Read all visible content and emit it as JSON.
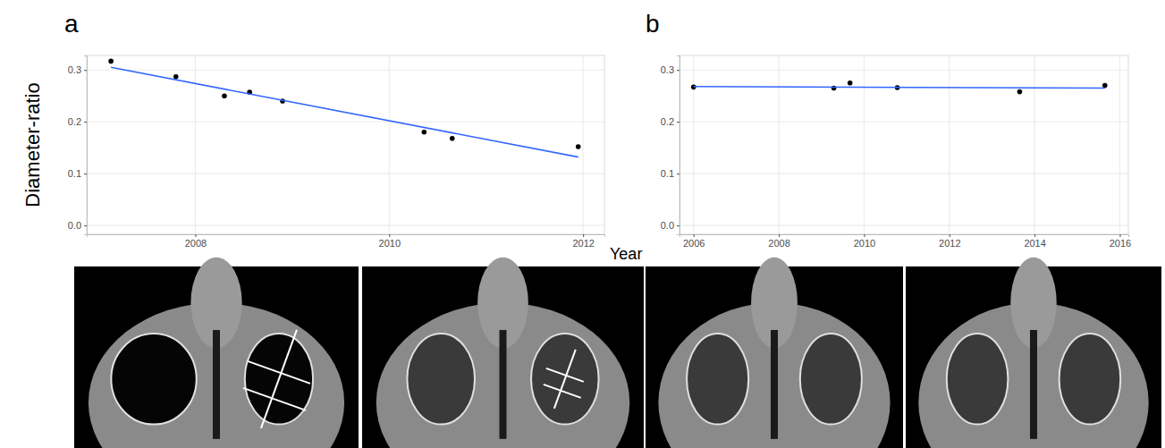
{
  "chart_data": [
    {
      "type": "scatter",
      "panel_label": "a",
      "y_label": "Diameter-ratio",
      "x_label": "Year",
      "xlim": [
        2006.88,
        2012.22
      ],
      "xticks": [
        2008,
        2010,
        2012
      ],
      "ylim": [
        -0.017,
        0.328
      ],
      "yticks": [
        {
          "value": 0,
          "label": "0.0"
        },
        0.1,
        0.2,
        0.3
      ],
      "grid": true,
      "series": [
        {
          "type": "scatter",
          "color": "#000000",
          "marker": "circle",
          "x": [
            2007.13,
            2007.8,
            2008.3,
            2008.56,
            2008.9,
            2010.36,
            2010.65,
            2011.95
          ],
          "values": [
            0.317,
            0.287,
            0.25,
            0.257,
            0.24,
            0.18,
            0.168,
            0.152
          ]
        },
        {
          "type": "line",
          "color": "#3366ff",
          "line_style": "solid",
          "x": [
            2007.13,
            2011.95
          ],
          "values": [
            0.305,
            0.132
          ]
        }
      ]
    },
    {
      "type": "scatter",
      "panel_label": "b",
      "xlim": [
        2005.67,
        2016.2
      ],
      "xticks": [
        2006,
        2008,
        2010,
        2012,
        2014,
        2016
      ],
      "ylim": [
        -0.017,
        0.328
      ],
      "yticks": [
        {
          "value": 0,
          "label": "0.0"
        },
        0.1,
        0.2,
        0.3
      ],
      "grid": true,
      "series": [
        {
          "type": "scatter",
          "color": "#000000",
          "marker": "circle",
          "x": [
            2006.0,
            2009.29,
            2009.67,
            2010.78,
            2013.65,
            2015.65
          ],
          "values": [
            0.267,
            0.265,
            0.275,
            0.266,
            0.258,
            0.27
          ]
        },
        {
          "type": "line",
          "color": "#3366ff",
          "line_style": "solid",
          "x": [
            2006.0,
            2015.65
          ],
          "values": [
            0.268,
            0.265
          ]
        }
      ]
    }
  ]
}
